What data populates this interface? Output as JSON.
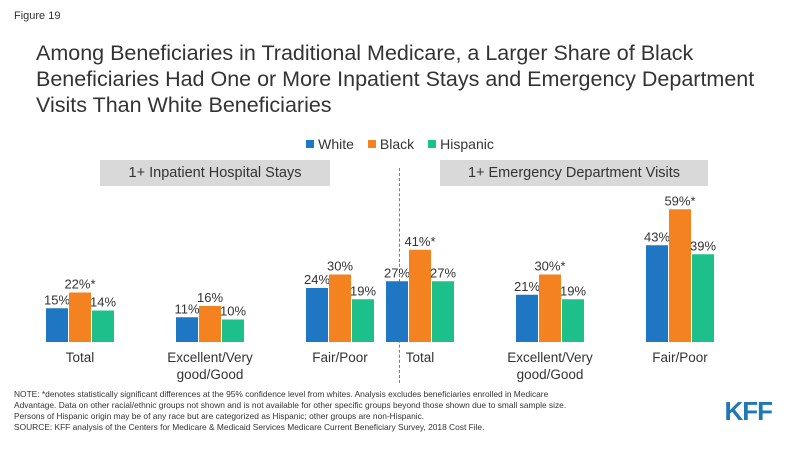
{
  "figure_label": "Figure 19",
  "title": "Among Beneficiaries in Traditional Medicare, a Larger Share of Black Beneficiaries Had One or More Inpatient Stays and Emergency Department Visits Than White Beneficiaries",
  "note_lines": [
    "NOTE: *denotes statistically significant differences at the 95% confidence level from whites. Analysis excludes beneficiaries enrolled in Medicare",
    "Advantage. Data on other racial/ethnic groups not shown and is not available for other specific groups beyond those shown due to small sample size.",
    "Persons of Hispanic origin may be of any race but are categorized as Hispanic; other groups are non-Hispanic.",
    "SOURCE: KFF analysis of the Centers for Medicare & Medicaid Services Medicare Current Beneficiary Survey, 2018 Cost  File."
  ],
  "logo_text": "KFF",
  "colors": {
    "White": "#1f77c4",
    "Black": "#f58220",
    "Hispanic": "#1dbf8a",
    "logo": "#1f77b4"
  },
  "chart_data": [
    {
      "type": "bar",
      "title": "1+ Inpatient Hospital Stays",
      "categories": [
        "Total",
        "Excellent/Very good/Good",
        "Fair/Poor"
      ],
      "category_lines": [
        [
          "Total"
        ],
        [
          "Excellent/Very",
          "good/Good"
        ],
        [
          "Fair/Poor"
        ]
      ],
      "series": [
        {
          "name": "White",
          "values": [
            15,
            11,
            24
          ],
          "labels": [
            "15%",
            "11%",
            "24%"
          ]
        },
        {
          "name": "Black",
          "values": [
            22,
            16,
            30
          ],
          "labels": [
            "22%*",
            "16%",
            "30%"
          ]
        },
        {
          "name": "Hispanic",
          "values": [
            14,
            10,
            19
          ],
          "labels": [
            "14%",
            "10%",
            "19%"
          ]
        }
      ],
      "ylim": [
        0,
        60
      ]
    },
    {
      "type": "bar",
      "title": "1+ Emergency Department Visits",
      "categories": [
        "Total",
        "Excellent/Very good/Good",
        "Fair/Poor"
      ],
      "category_lines": [
        [
          "Total"
        ],
        [
          "Excellent/Very",
          "good/Good"
        ],
        [
          "Fair/Poor"
        ]
      ],
      "series": [
        {
          "name": "White",
          "values": [
            27,
            21,
            43
          ],
          "labels": [
            "27%",
            "21%",
            "43%"
          ]
        },
        {
          "name": "Black",
          "values": [
            41,
            30,
            59
          ],
          "labels": [
            "41%*",
            "30%*",
            "59%*"
          ]
        },
        {
          "name": "Hispanic",
          "values": [
            27,
            19,
            39
          ],
          "labels": [
            "27%",
            "19%",
            "39%"
          ]
        }
      ],
      "ylim": [
        0,
        60
      ]
    }
  ]
}
